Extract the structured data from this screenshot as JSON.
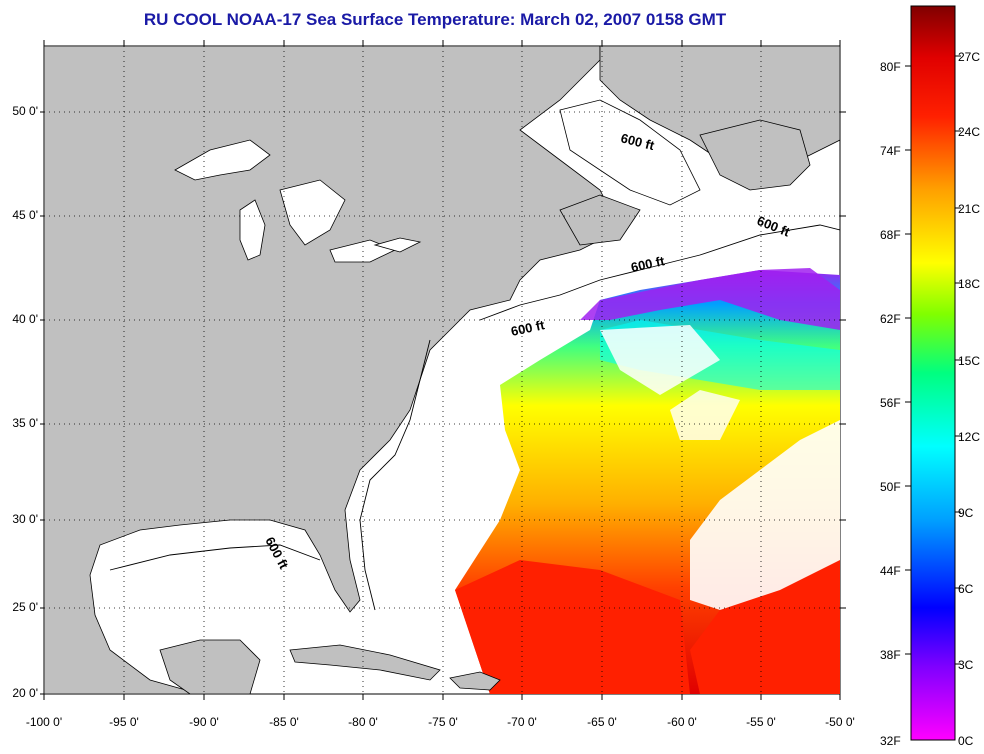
{
  "title": "RU COOL  NOAA-17  Sea Surface Temperature:  March 02, 2007 0158 GMT",
  "title_color": "#1a1aa6",
  "colors": {
    "land": "#c0c0c0",
    "water_nodata": "#ffffff",
    "coastline": "#000000"
  },
  "map": {
    "lat_range": [
      20,
      52.5
    ],
    "lon_range": [
      -100,
      -50
    ],
    "lat_ticks": [
      "20 0'",
      "25 0'",
      "30 0'",
      "35 0'",
      "40 0'",
      "45 0'",
      "50 0'"
    ],
    "lon_ticks": [
      "-100 0'",
      "-95 0'",
      "-90 0'",
      "-85 0'",
      "-80 0'",
      "-75 0'",
      "-70 0'",
      "-65 0'",
      "-60 0'",
      "-55 0'",
      "-50 0'"
    ],
    "grid": "dotted",
    "isobath_labels": [
      "600 ft",
      "600 ft",
      "600 ft",
      "600 ft",
      "600 ft"
    ]
  },
  "colorbar": {
    "fahrenheit_labels": [
      "32F",
      "38F",
      "44F",
      "50F",
      "56F",
      "62F",
      "68F",
      "74F",
      "80F"
    ],
    "celsius_labels": [
      "0C",
      "3C",
      "6C",
      "9C",
      "12C",
      "15C",
      "18C",
      "21C",
      "24C",
      "27C"
    ],
    "gradient": [
      "#ff00ff",
      "#7f00ff",
      "#0000ff",
      "#00a0ff",
      "#00ffff",
      "#00ff80",
      "#80ff00",
      "#ffff00",
      "#ffa000",
      "#ff4000",
      "#ff0000",
      "#b00000",
      "#800000"
    ]
  }
}
